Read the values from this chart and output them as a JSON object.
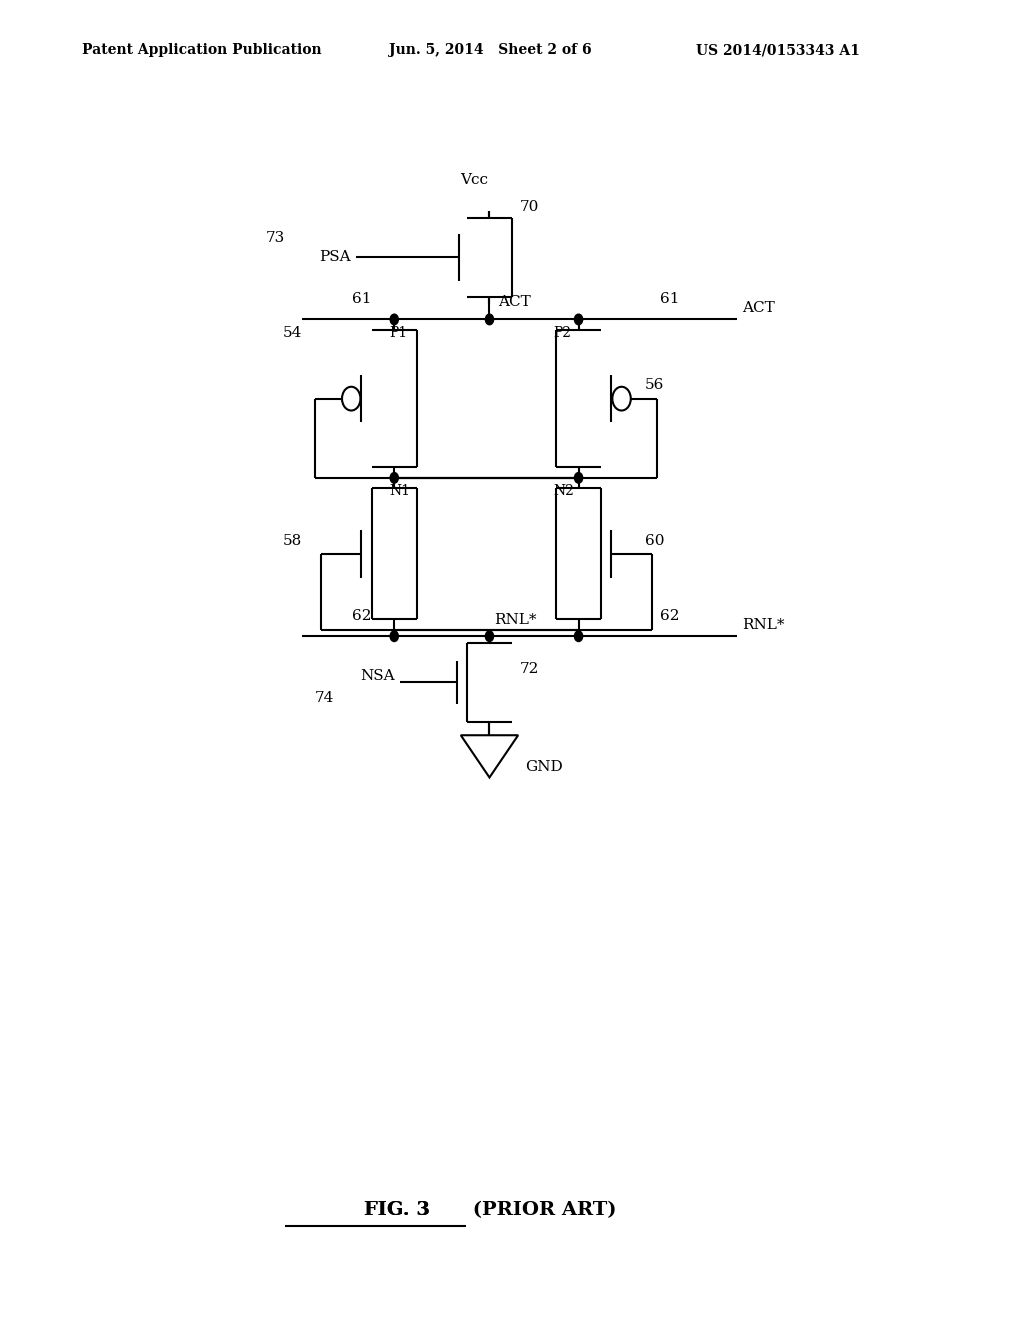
{
  "bg_color": "#ffffff",
  "line_color": "#000000",
  "line_width": 1.5,
  "header_text_left": "Patent Application Publication",
  "header_text_mid": "Jun. 5, 2014   Sheet 2 of 6",
  "header_text_right": "US 2014/0153343 A1",
  "figure_label_underlined": "FIG. 3",
  "figure_label_rest": " (PRIOR ART)",
  "Vcc_label": "Vcc",
  "GND_label": "GND",
  "ACT_label": "ACT",
  "RNL_label": "RNL*",
  "PSA_label": "PSA",
  "NSA_label": "NSA",
  "labels": {
    "70": "70",
    "73": "73",
    "54": "54",
    "56": "56",
    "58": "58",
    "60": "60",
    "61": "61",
    "62": "62",
    "72": "72",
    "74": "74",
    "P1": "P1",
    "P2": "P2",
    "N1": "N1",
    "N2": "N2"
  }
}
